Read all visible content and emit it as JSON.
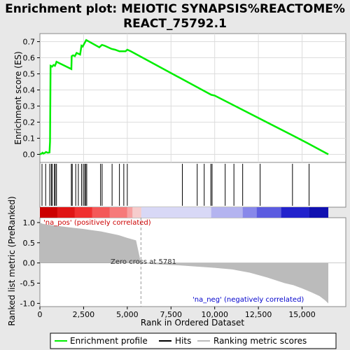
{
  "chart_data": {
    "type": "line",
    "title_line1": "Enrichment plot: MEIOTIC SYNAPSIS%REACTOME%",
    "title_line2": "REACT_75792.1",
    "ylabel_top": "Enrichment score (ES)",
    "ylabel_bottom": "Ranked list metric (PreRanked)",
    "xlabel": "Rank in Ordered Dataset",
    "x_range": [
      0,
      17500
    ],
    "es_yrange": [
      -0.05,
      0.75
    ],
    "metric_yrange": [
      -1.08,
      1.12
    ],
    "es_ticks": [
      "0.0",
      "0.1",
      "0.2",
      "0.3",
      "0.4",
      "0.5",
      "0.6",
      "0.7"
    ],
    "es_tick_values": [
      0.0,
      0.1,
      0.2,
      0.3,
      0.4,
      0.5,
      0.6,
      0.7
    ],
    "metric_ticks": [
      "1.0",
      "0.5",
      "0.0",
      "-0.5",
      "-1.0"
    ],
    "metric_tick_values": [
      1.0,
      0.5,
      0.0,
      -0.5,
      -1.0
    ],
    "x_ticks": [
      "0",
      "2,500",
      "5,000",
      "7,500",
      "10,000",
      "12,500",
      "15,000"
    ],
    "x_tick_values": [
      0,
      2500,
      5000,
      7500,
      10000,
      12500,
      15000
    ],
    "enrichment_profile": {
      "name": "Enrichment profile",
      "color": "#00ee00",
      "points": [
        [
          0,
          0.0
        ],
        [
          100,
          0.005
        ],
        [
          150,
          0.01
        ],
        [
          200,
          0.005
        ],
        [
          300,
          0.01
        ],
        [
          350,
          0.015
        ],
        [
          450,
          0.01
        ],
        [
          550,
          0.012
        ],
        [
          580,
          0.08
        ],
        [
          610,
          0.55
        ],
        [
          700,
          0.545
        ],
        [
          780,
          0.555
        ],
        [
          860,
          0.55
        ],
        [
          900,
          0.56
        ],
        [
          950,
          0.575
        ],
        [
          1800,
          0.53
        ],
        [
          1820,
          0.61
        ],
        [
          1900,
          0.615
        ],
        [
          2000,
          0.61
        ],
        [
          2100,
          0.63
        ],
        [
          2200,
          0.625
        ],
        [
          2300,
          0.62
        ],
        [
          2380,
          0.675
        ],
        [
          2450,
          0.67
        ],
        [
          2550,
          0.69
        ],
        [
          2600,
          0.7
        ],
        [
          2650,
          0.71
        ],
        [
          3400,
          0.665
        ],
        [
          3550,
          0.68
        ],
        [
          3700,
          0.675
        ],
        [
          4100,
          0.655
        ],
        [
          4300,
          0.65
        ],
        [
          4550,
          0.64
        ],
        [
          4900,
          0.64
        ],
        [
          5000,
          0.65
        ],
        [
          5200,
          0.64
        ],
        [
          9800,
          0.37
        ],
        [
          10000,
          0.365
        ],
        [
          14500,
          0.115
        ],
        [
          15300,
          0.07
        ],
        [
          16500,
          0.0
        ]
      ]
    },
    "hits": [
      120,
      330,
      560,
      650,
      700,
      820,
      880,
      950,
      1800,
      1850,
      2050,
      2200,
      2380,
      2480,
      2560,
      2620,
      2680,
      3470,
      3560,
      4130,
      4550,
      4800,
      5000,
      8150,
      9000,
      9400,
      9780,
      9850,
      10600,
      11100,
      11600,
      12600,
      14450,
      15400
    ],
    "zero_cross_rank": 5781,
    "zero_cross_label": "Zero cross at 5781",
    "pos_label": "'na_pos' (positively correlated)",
    "neg_label": "'na_neg' (negatively correlated)",
    "metric_curve": [
      [
        0,
        1.0
      ],
      [
        150,
        0.97
      ],
      [
        400,
        0.95
      ],
      [
        800,
        0.93
      ],
      [
        1500,
        0.89
      ],
      [
        2500,
        0.84
      ],
      [
        3500,
        0.78
      ],
      [
        4500,
        0.69
      ],
      [
        5000,
        0.62
      ],
      [
        5500,
        0.56
      ],
      [
        5781,
        0.0
      ],
      [
        6500,
        -0.03
      ],
      [
        8000,
        -0.06
      ],
      [
        9000,
        -0.09
      ],
      [
        10000,
        -0.12
      ],
      [
        11000,
        -0.16
      ],
      [
        12000,
        -0.24
      ],
      [
        13000,
        -0.36
      ],
      [
        14000,
        -0.5
      ],
      [
        14500,
        -0.55
      ],
      [
        15000,
        -0.63
      ],
      [
        15500,
        -0.72
      ],
      [
        16000,
        -0.82
      ],
      [
        16300,
        -0.92
      ],
      [
        16500,
        -1.0
      ]
    ],
    "ranking_bar_segments": [
      {
        "from": 0,
        "to": 1000,
        "color": "#cc0000"
      },
      {
        "from": 1000,
        "to": 2000,
        "color": "#e01515"
      },
      {
        "from": 2000,
        "to": 3000,
        "color": "#f03030"
      },
      {
        "from": 3000,
        "to": 4000,
        "color": "#f45858"
      },
      {
        "from": 4000,
        "to": 5000,
        "color": "#f67a7a"
      },
      {
        "from": 5000,
        "to": 5300,
        "color": "#f7a0a0"
      },
      {
        "from": 5300,
        "to": 5800,
        "color": "#f6cccc"
      },
      {
        "from": 5800,
        "to": 9800,
        "color": "#d8d8f6"
      },
      {
        "from": 9800,
        "to": 11600,
        "color": "#b4b4f0"
      },
      {
        "from": 11600,
        "to": 12400,
        "color": "#8888ea"
      },
      {
        "from": 12400,
        "to": 13800,
        "color": "#5c5ce0"
      },
      {
        "from": 13800,
        "to": 15400,
        "color": "#2222cc"
      },
      {
        "from": 15400,
        "to": 16500,
        "color": "#1010b0"
      }
    ],
    "legend": [
      {
        "label": "Enrichment profile",
        "color": "#00ee00"
      },
      {
        "label": "Hits",
        "color": "#000000"
      },
      {
        "label": "Ranking metric scores",
        "color": "#bbbbbb"
      }
    ],
    "colors": {
      "pos_label": "#cc0000",
      "neg_label": "#0000cc",
      "metric_fill": "#bbbbbb"
    }
  }
}
